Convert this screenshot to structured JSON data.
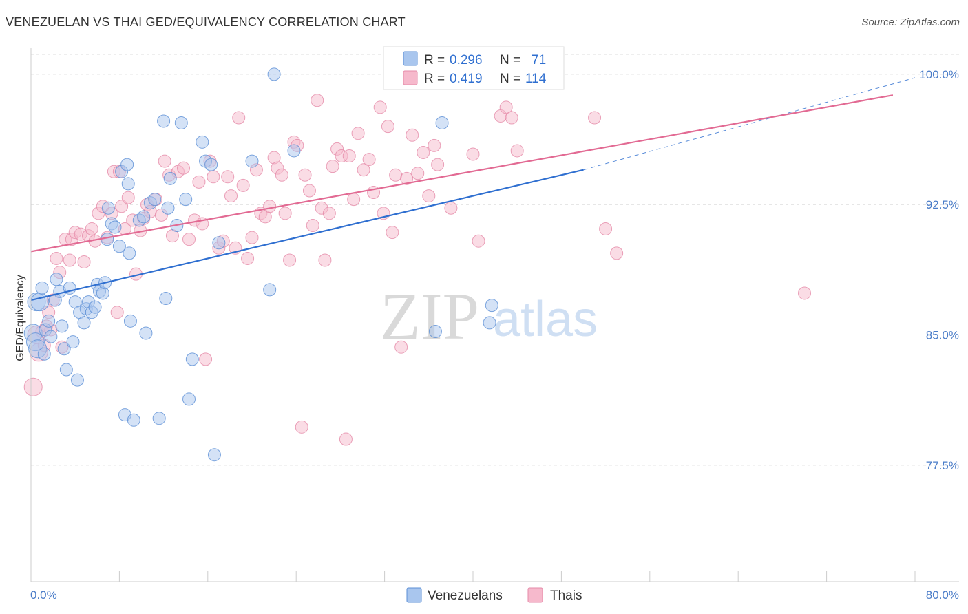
{
  "header": {
    "title": "VENEZUELAN VS THAI GED/EQUIVALENCY CORRELATION CHART",
    "source": "Source: ZipAtlas.com"
  },
  "watermark": {
    "zip": "ZIP",
    "atlas": "atlas"
  },
  "colors": {
    "venezuelans_fill": "#a9c6ee",
    "venezuelans_stroke": "#5b8fd6",
    "venezuelans_line": "#2f6fd0",
    "thais_fill": "#f6b9cc",
    "thais_stroke": "#e58aa8",
    "thais_line": "#e26a93",
    "grid": "#dddddd",
    "tick_label": "#4a7cc8"
  },
  "legend_top": {
    "rows": [
      {
        "r_label": "R = ",
        "r_value": "0.296",
        "n_label": "N = ",
        "n_value": "71"
      },
      {
        "r_label": "R = ",
        "r_value": "0.419",
        "n_label": "N = ",
        "n_value": "114"
      }
    ]
  },
  "chart_data": {
    "type": "scatter",
    "title": "VENEZUELAN VS THAI GED/EQUIVALENCY CORRELATION CHART",
    "xlabel": "",
    "ylabel": "GED/Equivalency",
    "xlim": [
      0,
      80
    ],
    "ylim": [
      70.8,
      101.5
    ],
    "x_tick_labels": [
      "0.0%",
      "80.0%"
    ],
    "y_ticks": [
      77.5,
      85.0,
      92.5,
      100.0
    ],
    "y_tick_labels": [
      "77.5%",
      "85.0%",
      "92.5%",
      "100.0%"
    ],
    "grid": true,
    "legend_position": "bottom",
    "series": [
      {
        "name": "Venezuelans",
        "r": 0.296,
        "n": 71,
        "trend": {
          "x0": 0,
          "y0": 87.0,
          "x1": 50,
          "y1": 94.5,
          "dash_to_x": 80,
          "dash_to_y": 99.8
        },
        "points": [
          [
            0.2,
            85.1
          ],
          [
            0.4,
            84.6
          ],
          [
            0.5,
            86.9
          ],
          [
            0.6,
            84.2
          ],
          [
            0.8,
            86.9
          ],
          [
            1.0,
            87.7
          ],
          [
            1.2,
            83.9
          ],
          [
            1.3,
            85.3
          ],
          [
            1.6,
            85.8
          ],
          [
            1.8,
            84.9
          ],
          [
            2.2,
            87.0
          ],
          [
            2.3,
            88.2
          ],
          [
            2.6,
            87.5
          ],
          [
            2.8,
            85.5
          ],
          [
            3.0,
            84.2
          ],
          [
            3.2,
            83.0
          ],
          [
            3.5,
            87.7
          ],
          [
            3.8,
            84.6
          ],
          [
            4.0,
            86.9
          ],
          [
            4.2,
            82.4
          ],
          [
            4.4,
            86.3
          ],
          [
            4.8,
            85.7
          ],
          [
            5.0,
            86.5
          ],
          [
            5.2,
            86.9
          ],
          [
            5.5,
            86.3
          ],
          [
            5.8,
            86.6
          ],
          [
            6.0,
            87.9
          ],
          [
            6.2,
            87.5
          ],
          [
            6.5,
            87.4
          ],
          [
            6.7,
            88.0
          ],
          [
            6.9,
            90.5
          ],
          [
            7.0,
            92.3
          ],
          [
            7.3,
            91.4
          ],
          [
            7.6,
            91.2
          ],
          [
            8.0,
            90.1
          ],
          [
            8.2,
            94.4
          ],
          [
            8.5,
            80.4
          ],
          [
            8.7,
            94.8
          ],
          [
            8.8,
            93.7
          ],
          [
            8.9,
            89.7
          ],
          [
            9.0,
            85.8
          ],
          [
            9.3,
            80.1
          ],
          [
            9.8,
            91.6
          ],
          [
            10.2,
            91.8
          ],
          [
            10.4,
            85.1
          ],
          [
            10.8,
            92.6
          ],
          [
            11.2,
            92.8
          ],
          [
            11.6,
            80.2
          ],
          [
            12.0,
            97.3
          ],
          [
            12.2,
            87.1
          ],
          [
            12.4,
            92.3
          ],
          [
            12.6,
            94.0
          ],
          [
            13.2,
            91.3
          ],
          [
            13.6,
            97.2
          ],
          [
            14.0,
            92.8
          ],
          [
            14.3,
            81.3
          ],
          [
            14.6,
            83.6
          ],
          [
            15.5,
            96.1
          ],
          [
            15.8,
            95.0
          ],
          [
            16.3,
            94.8
          ],
          [
            16.6,
            78.1
          ],
          [
            17.0,
            90.3
          ],
          [
            20.0,
            95.0
          ],
          [
            21.6,
            87.6
          ],
          [
            22.0,
            100.0
          ],
          [
            23.8,
            95.6
          ],
          [
            36.6,
            85.2
          ],
          [
            37.2,
            97.2
          ],
          [
            41.0,
            100.0
          ],
          [
            41.5,
            85.7
          ],
          [
            41.7,
            86.7
          ]
        ]
      },
      {
        "name": "Thais",
        "r": 0.419,
        "n": 114,
        "trend": {
          "x0": 0,
          "y0": 89.8,
          "x1": 78,
          "y1": 98.8
        },
        "points": [
          [
            0.2,
            82.0
          ],
          [
            0.5,
            85.0
          ],
          [
            0.7,
            84.0
          ],
          [
            1.0,
            85.2
          ],
          [
            1.2,
            84.4
          ],
          [
            1.4,
            85.5
          ],
          [
            1.6,
            86.3
          ],
          [
            1.8,
            85.3
          ],
          [
            2.0,
            87.0
          ],
          [
            2.3,
            89.4
          ],
          [
            2.6,
            88.6
          ],
          [
            2.8,
            84.3
          ],
          [
            3.1,
            90.5
          ],
          [
            3.5,
            89.3
          ],
          [
            3.7,
            90.5
          ],
          [
            4.0,
            90.9
          ],
          [
            4.5,
            90.8
          ],
          [
            4.8,
            89.2
          ],
          [
            5.2,
            90.7
          ],
          [
            5.5,
            91.1
          ],
          [
            5.8,
            90.4
          ],
          [
            6.1,
            92.0
          ],
          [
            6.5,
            92.4
          ],
          [
            6.9,
            90.6
          ],
          [
            7.3,
            92.0
          ],
          [
            7.5,
            94.4
          ],
          [
            7.8,
            86.3
          ],
          [
            8.0,
            94.4
          ],
          [
            8.2,
            92.4
          ],
          [
            8.5,
            91.1
          ],
          [
            8.8,
            92.9
          ],
          [
            9.2,
            91.6
          ],
          [
            9.5,
            88.5
          ],
          [
            9.9,
            91.0
          ],
          [
            10.2,
            91.7
          ],
          [
            10.5,
            92.5
          ],
          [
            10.8,
            92.1
          ],
          [
            11.3,
            92.8
          ],
          [
            11.8,
            91.9
          ],
          [
            12.1,
            95.0
          ],
          [
            12.5,
            94.2
          ],
          [
            12.8,
            90.7
          ],
          [
            13.3,
            94.4
          ],
          [
            13.8,
            94.6
          ],
          [
            14.3,
            90.5
          ],
          [
            14.8,
            91.6
          ],
          [
            15.2,
            93.8
          ],
          [
            15.5,
            91.4
          ],
          [
            15.8,
            83.6
          ],
          [
            16.2,
            95.0
          ],
          [
            16.5,
            94.1
          ],
          [
            17.0,
            90.0
          ],
          [
            17.4,
            90.4
          ],
          [
            17.8,
            94.1
          ],
          [
            18.1,
            93.0
          ],
          [
            18.5,
            90.0
          ],
          [
            18.8,
            97.5
          ],
          [
            19.2,
            93.6
          ],
          [
            19.6,
            89.4
          ],
          [
            20.0,
            90.6
          ],
          [
            20.4,
            94.5
          ],
          [
            20.8,
            92.0
          ],
          [
            21.2,
            91.8
          ],
          [
            21.6,
            92.4
          ],
          [
            22.0,
            95.2
          ],
          [
            22.3,
            94.6
          ],
          [
            22.7,
            94.2
          ],
          [
            23.0,
            92.0
          ],
          [
            23.4,
            89.3
          ],
          [
            23.8,
            96.1
          ],
          [
            24.1,
            95.9
          ],
          [
            24.5,
            79.7
          ],
          [
            24.8,
            94.2
          ],
          [
            25.2,
            93.3
          ],
          [
            25.5,
            91.3
          ],
          [
            25.9,
            98.5
          ],
          [
            26.3,
            92.3
          ],
          [
            26.6,
            89.3
          ],
          [
            27.0,
            92.0
          ],
          [
            27.3,
            94.7
          ],
          [
            27.7,
            95.7
          ],
          [
            28.1,
            95.3
          ],
          [
            28.5,
            79.0
          ],
          [
            28.8,
            95.3
          ],
          [
            29.2,
            92.8
          ],
          [
            29.6,
            96.6
          ],
          [
            30.1,
            94.5
          ],
          [
            30.6,
            95.1
          ],
          [
            31.0,
            93.2
          ],
          [
            31.6,
            98.1
          ],
          [
            31.9,
            92.0
          ],
          [
            32.3,
            97.0
          ],
          [
            32.7,
            90.9
          ],
          [
            33.0,
            94.2
          ],
          [
            33.5,
            84.3
          ],
          [
            34.0,
            94.0
          ],
          [
            34.5,
            96.5
          ],
          [
            35.0,
            94.3
          ],
          [
            35.5,
            95.5
          ],
          [
            36.0,
            93.0
          ],
          [
            36.5,
            95.9
          ],
          [
            36.8,
            94.8
          ],
          [
            38.0,
            92.3
          ],
          [
            40.0,
            95.4
          ],
          [
            40.5,
            90.4
          ],
          [
            42.5,
            97.6
          ],
          [
            43.0,
            98.1
          ],
          [
            43.5,
            97.5
          ],
          [
            44.0,
            95.6
          ],
          [
            45.0,
            100.0
          ],
          [
            51.0,
            97.5
          ],
          [
            52.0,
            91.1
          ],
          [
            53.0,
            89.7
          ],
          [
            70.0,
            87.4
          ]
        ]
      }
    ]
  },
  "legend_bottom": {
    "items": [
      "Venezuelans",
      "Thais"
    ]
  }
}
